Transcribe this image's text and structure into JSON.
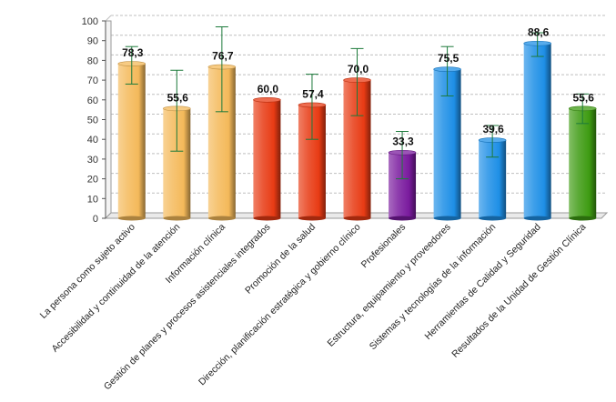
{
  "chart_data": {
    "type": "bar",
    "title": "",
    "xlabel": "",
    "ylabel": "",
    "ylim": [
      0,
      100
    ],
    "yticks": [
      0,
      10,
      20,
      30,
      40,
      50,
      60,
      70,
      80,
      90,
      100
    ],
    "grid": true,
    "legend": "none",
    "categories": [
      "La persona como sujeto activo",
      "Accesibilidad y continuidad de la atención",
      "Información clínica",
      "Gestión de planes y procesos asistenciales integrados",
      "Promoción de la salud",
      "Dirección, planificación estratégica y gobierno clínico",
      "Profesionales",
      "Estructura, equipamiento y proveedores",
      "Sistemas y tecnologías de la información",
      "Herramientas de Calidad y Seguridad",
      "Resultados de la Unidad de Gestión Clínica"
    ],
    "values": [
      78.3,
      55.6,
      76.7,
      60.0,
      57.4,
      70.0,
      33.3,
      75.5,
      39.6,
      88.6,
      55.6
    ],
    "labels": [
      "78,3",
      "55,6",
      "76,7",
      "60,0",
      "57,4",
      "70,0",
      "33,3",
      "75,5",
      "39,6",
      "88,6",
      "55,6"
    ],
    "error_low": [
      68,
      34,
      54,
      null,
      40,
      52,
      20,
      62,
      31,
      82,
      48
    ],
    "error_high": [
      87,
      75,
      97,
      null,
      73,
      86,
      44,
      87,
      47,
      94,
      63
    ],
    "bar_colors": [
      "#f4b95a",
      "#f4b95a",
      "#f4b95a",
      "#e83b14",
      "#e83b14",
      "#e83b14",
      "#7a1b9e",
      "#1e8fe6",
      "#1e8fe6",
      "#1e8fe6",
      "#3e9b12"
    ],
    "error_color": "#1c7a3a",
    "grid_color": "#bfbfbf"
  }
}
